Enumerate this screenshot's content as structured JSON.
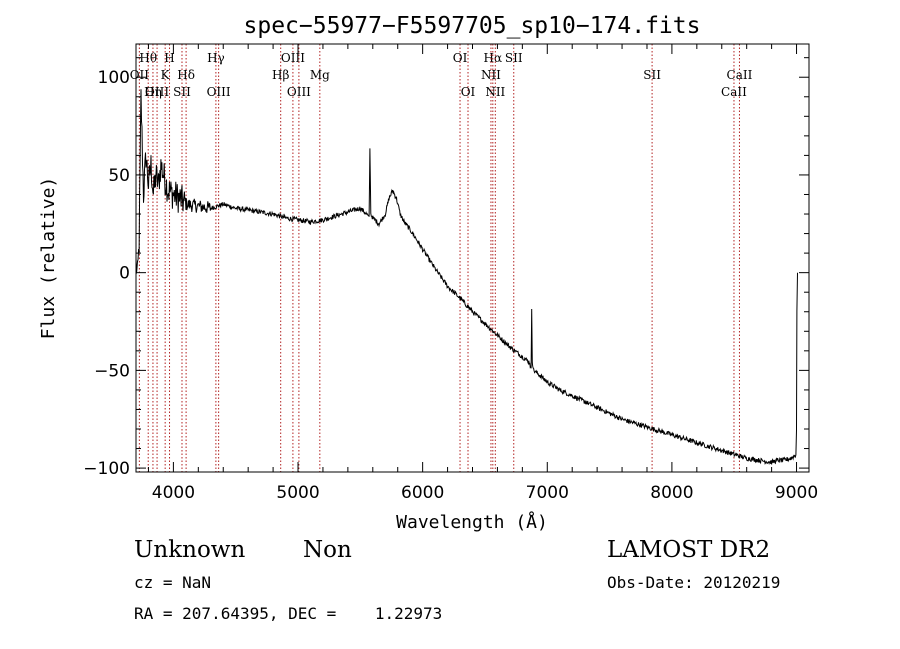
{
  "chart_data": {
    "type": "line",
    "title": "spec−55977−F5597705_sp10−174.fits",
    "xlabel": "Wavelength (Å)",
    "ylabel": "Flux (relative)",
    "xlim": [
      3700,
      9100
    ],
    "ylim": [
      -102,
      117
    ],
    "xticks": [
      4000,
      5000,
      6000,
      7000,
      8000,
      9000
    ],
    "yticks": [
      -100,
      -50,
      0,
      50,
      100
    ],
    "ytick_labels": [
      "−100",
      "−50",
      "0",
      "50",
      "100"
    ],
    "line_color": "#000000",
    "marker_color": "#b22222",
    "grid": false,
    "series": [
      {
        "x": [
          3700,
          3712,
          3725,
          3740,
          3760,
          3780,
          3800,
          3820,
          3840,
          3860,
          3880,
          3900,
          3930,
          3960,
          4000,
          4050,
          4100,
          4200,
          4300,
          4400,
          4500,
          4600,
          4700,
          4800,
          4900,
          5000,
          5100,
          5200,
          5300,
          5400,
          5500,
          5550,
          5570,
          5577,
          5584,
          5600,
          5650,
          5700,
          5730,
          5760,
          5790,
          5820,
          5850,
          5900,
          6000,
          6100,
          6200,
          6300,
          6400,
          6500,
          6600,
          6700,
          6800,
          6860,
          6870,
          6875,
          6880,
          6890,
          6950,
          7000,
          7100,
          7200,
          7300,
          7400,
          7500,
          7600,
          7700,
          7800,
          7900,
          8000,
          8100,
          8200,
          8300,
          8400,
          8500,
          8600,
          8700,
          8800,
          8850,
          8900,
          8950,
          8980,
          8995,
          9000,
          9003,
          9008
        ],
        "y": [
          5,
          -2,
          15,
          90,
          40,
          60,
          45,
          55,
          40,
          50,
          45,
          55,
          48,
          42,
          40,
          38,
          35,
          34,
          33,
          35,
          33,
          32,
          31,
          30,
          28,
          27,
          26,
          27,
          29,
          31,
          33,
          30,
          28,
          63,
          30,
          28,
          25,
          30,
          38,
          42,
          38,
          30,
          26,
          22,
          12,
          2,
          -7,
          -13,
          -20,
          -26,
          -32,
          -38,
          -43,
          -46,
          -50,
          -18,
          -45,
          -50,
          -53,
          -56,
          -60,
          -63,
          -66,
          -69,
          -72,
          -75,
          -77,
          -79,
          -81,
          -83,
          -85,
          -87,
          -89,
          -91,
          -93,
          -95,
          -96,
          -97,
          -96,
          -96,
          -95,
          -94,
          -93,
          -80,
          -20,
          0
        ]
      }
    ],
    "line_markers": [
      {
        "label": "Hθ",
        "x": 3798,
        "row": 1
      },
      {
        "label": "OII",
        "x": 3727,
        "row": 2
      },
      {
        "label": "OIII",
        "x": 3869,
        "row": 3
      },
      {
        "label": "Hη",
        "x": 3836,
        "row": 3
      },
      {
        "label": "H",
        "x": 3969,
        "row": 1
      },
      {
        "label": "K",
        "x": 3934,
        "row": 2
      },
      {
        "label": "Hδ",
        "x": 4102,
        "row": 2
      },
      {
        "label": "SII",
        "x": 4069,
        "row": 3
      },
      {
        "label": "Hγ",
        "x": 4341,
        "row": 1
      },
      {
        "label": "OIII",
        "x": 4363,
        "row": 3
      },
      {
        "label": "OIII",
        "x": 4959,
        "row": 1
      },
      {
        "label": "Hβ",
        "x": 4861,
        "row": 2
      },
      {
        "label": "Mg",
        "x": 5175,
        "row": 2
      },
      {
        "label": "OIII",
        "x": 5007,
        "row": 3
      },
      {
        "label": "OI",
        "x": 6300,
        "row": 1
      },
      {
        "label": "OI",
        "x": 6364,
        "row": 3
      },
      {
        "label": "Hα",
        "x": 6563,
        "row": 1
      },
      {
        "label": "SII",
        "x": 6731,
        "row": 1
      },
      {
        "label": "NII",
        "x": 6548,
        "row": 2
      },
      {
        "label": "NII",
        "x": 6583,
        "row": 3
      },
      {
        "label": "SII",
        "x": 7841,
        "row": 2
      },
      {
        "label": "CaII",
        "x": 8542,
        "row": 2
      },
      {
        "label": "CaII",
        "x": 8498,
        "row": 3
      }
    ]
  },
  "info": {
    "object_class": "Unknown",
    "object_subclass": "Non",
    "survey": "LAMOST DR2",
    "cz": "cz = NaN",
    "obs_date": "Obs-Date: 20120219",
    "coords": "RA = 207.64395, DEC =    1.22973"
  }
}
